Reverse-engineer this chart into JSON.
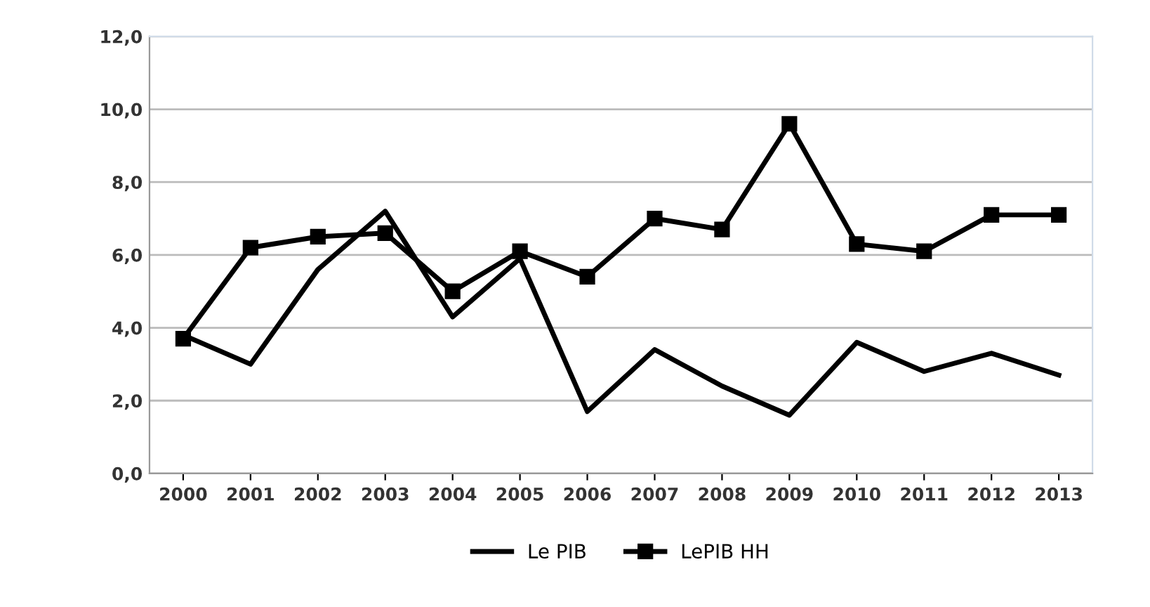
{
  "chart_data": {
    "type": "line",
    "categories": [
      "2000",
      "2001",
      "2002",
      "2003",
      "2004",
      "2005",
      "2006",
      "2007",
      "2008",
      "2009",
      "2010",
      "2011",
      "2012",
      "2013"
    ],
    "series": [
      {
        "name": "Le PIB",
        "color": "#000000",
        "marker": "none",
        "values": [
          3.8,
          3.0,
          5.6,
          7.2,
          4.3,
          5.9,
          1.7,
          3.4,
          2.4,
          1.6,
          3.6,
          2.8,
          3.3,
          2.7
        ]
      },
      {
        "name": "LePIB HH",
        "color": "#000000",
        "marker": "square",
        "values": [
          3.7,
          6.2,
          6.5,
          6.6,
          5.0,
          6.1,
          5.4,
          7.0,
          6.7,
          9.6,
          6.3,
          6.1,
          7.1,
          7.1
        ]
      }
    ],
    "ylim": [
      0,
      12
    ],
    "yticks": [
      {
        "value": 0,
        "label": "0,0"
      },
      {
        "value": 2,
        "label": "2,0"
      },
      {
        "value": 4,
        "label": "4,0"
      },
      {
        "value": 6,
        "label": "6,0"
      },
      {
        "value": 8,
        "label": "8,0"
      },
      {
        "value": 10,
        "label": "10,0"
      },
      {
        "value": 12,
        "label": "12,0"
      }
    ],
    "grid": "y",
    "legend": "bottom",
    "line_style": "solid"
  }
}
